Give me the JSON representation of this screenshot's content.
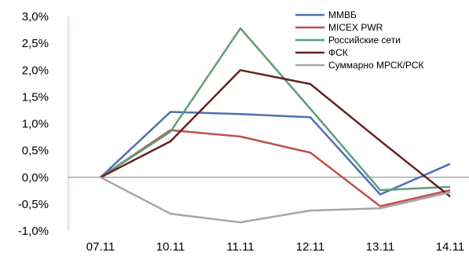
{
  "chart_data": {
    "type": "line",
    "categories": [
      "07.11",
      "10.11",
      "11.11",
      "12.11",
      "13.11",
      "14.11"
    ],
    "ylim": [
      -1.0,
      3.0
    ],
    "yticks": [
      -1.0,
      -0.5,
      0.0,
      0.5,
      1.0,
      1.5,
      2.0,
      2.5,
      3.0
    ],
    "ytick_labels": [
      "-1,0%",
      "-0,5%",
      "0,0%",
      "0,5%",
      "1,0%",
      "1,5%",
      "2,0%",
      "2,5%",
      "3,0%"
    ],
    "y_unit": "%",
    "grid": false,
    "legend_position": "top-right",
    "series": [
      {
        "name": "ММВБ",
        "color": "#4F6FB4",
        "values": [
          0.0,
          1.22,
          1.18,
          1.12,
          -0.32,
          0.25
        ]
      },
      {
        "name": "MICEX PWR",
        "color": "#C0504D",
        "values": [
          0.0,
          0.88,
          0.76,
          0.46,
          -0.54,
          -0.24
        ]
      },
      {
        "name": "Российские сети",
        "color": "#5E9E79",
        "values": [
          0.0,
          0.85,
          2.78,
          1.28,
          -0.24,
          -0.18
        ]
      },
      {
        "name": "ФСК",
        "color": "#6B1F1F",
        "values": [
          0.0,
          0.67,
          2.0,
          1.74,
          0.68,
          -0.36
        ]
      },
      {
        "name": "Суммарно МРСК/РСК",
        "color": "#A6A6A6",
        "values": [
          0.0,
          -0.68,
          -0.84,
          -0.62,
          -0.58,
          -0.28
        ]
      }
    ]
  }
}
